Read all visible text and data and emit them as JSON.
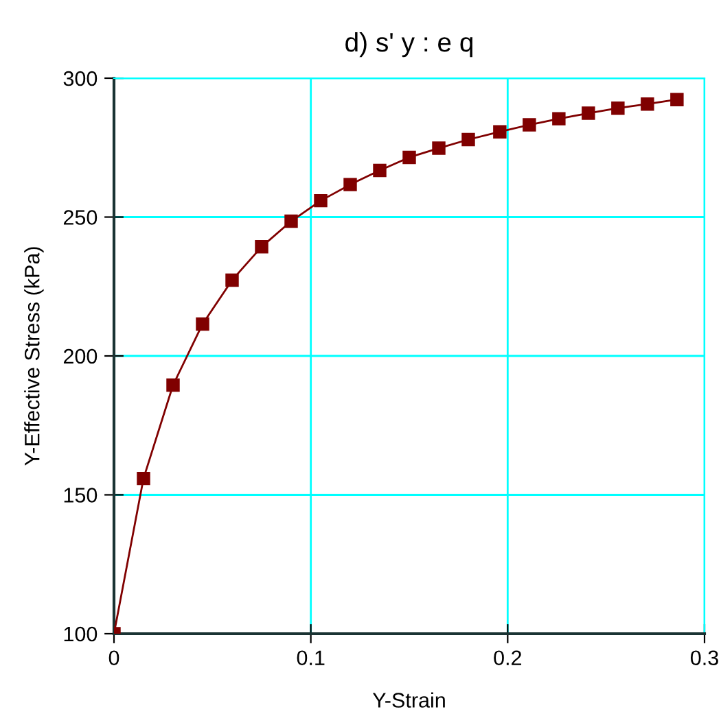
{
  "chart_data": {
    "type": "line",
    "title": "d) s' y : e q",
    "xlabel": "Y-Strain",
    "ylabel": "Y-Effective Stress (kPa)",
    "x": [
      0,
      0.015,
      0.03,
      0.045,
      0.06,
      0.075,
      0.09,
      0.105,
      0.12,
      0.135,
      0.15,
      0.165,
      0.18,
      0.196,
      0.211,
      0.226,
      0.241,
      0.256,
      0.271,
      0.286
    ],
    "series": [
      {
        "color": "#800000",
        "values": [
          100,
          155.9,
          189.5,
          211.5,
          227.3,
          239.3,
          248.5,
          255.9,
          261.7,
          266.8,
          271.5,
          274.8,
          277.9,
          280.7,
          283.2,
          285.4,
          287.4,
          289.2,
          290.7,
          292.3
        ]
      }
    ],
    "xlim": [
      0,
      0.3
    ],
    "xticks": [
      0,
      0.1,
      0.2,
      0.3
    ],
    "ylim": [
      100,
      300
    ],
    "yticks": [
      100,
      150,
      200,
      250,
      300
    ],
    "grid": true,
    "marker": "square",
    "line_style": "solid"
  }
}
